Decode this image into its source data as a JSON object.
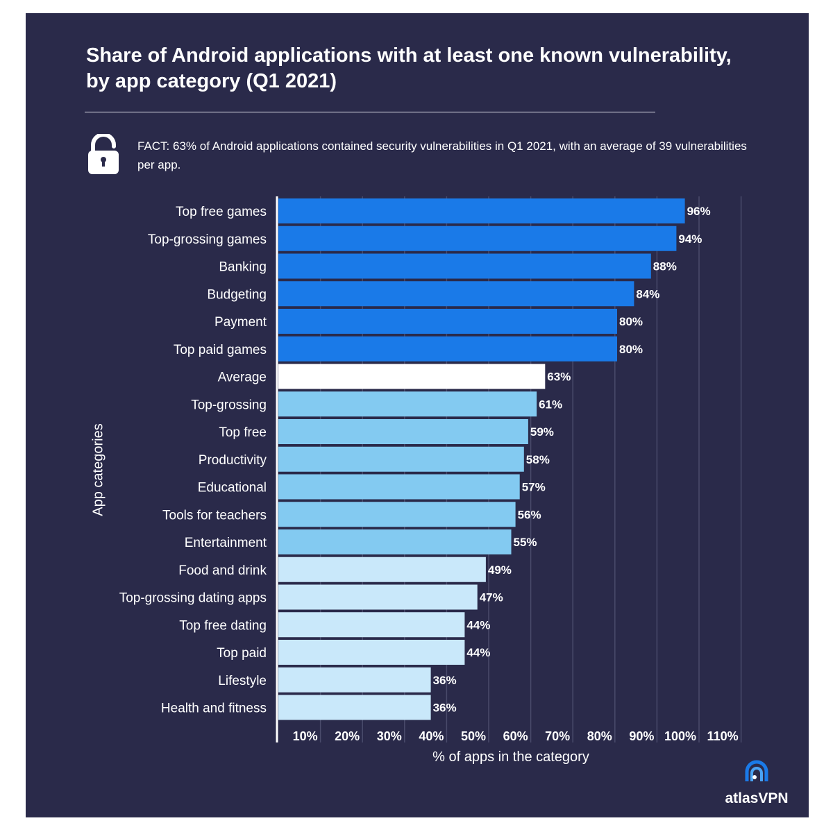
{
  "chart_data": {
    "type": "bar",
    "orientation": "horizontal",
    "title": "Share of Android applications with at least one known vulnerability, by app category  (Q1 2021)",
    "xlabel": "% of apps in the category",
    "ylabel": "App categories",
    "xlim": [
      0,
      115
    ],
    "xticks": [
      "10%",
      "20%",
      "30%",
      "40%",
      "50%",
      "60%",
      "70%",
      "80%",
      "90%",
      "100%",
      "110%"
    ],
    "grid": "vertical",
    "categories": [
      "Top free games",
      "Top-grossing games",
      "Banking",
      "Budgeting",
      "Payment",
      "Top paid games",
      "Average",
      "Top-grossing",
      "Top free",
      "Productivity",
      "Educational",
      "Tools for teachers",
      "Entertainment",
      "Food and drink",
      "Top-grossing dating apps",
      "Top free dating",
      "Top paid",
      "Lifestyle",
      "Health and fitness"
    ],
    "values": [
      96,
      94,
      88,
      84,
      80,
      80,
      63,
      61,
      59,
      58,
      57,
      56,
      55,
      49,
      47,
      44,
      44,
      36,
      36
    ],
    "labels": [
      "96%",
      "94%",
      "88%",
      "84%",
      "80%",
      "80%",
      "63%",
      "61%",
      "59%",
      "58%",
      "57%",
      "56%",
      "55%",
      "49%",
      "47%",
      "44%",
      "44%",
      "36%",
      "36%"
    ],
    "colors": {
      "high": "#1a7ae8",
      "average": "#ffffff",
      "mid": "#83caf1",
      "low": "#c9e8fa",
      "background": "#2a2a4a"
    }
  },
  "fact": "FACT: 63% of Android applications contained security vulnerabilities in Q1 2021, with an average of 39 vulnerabilities per app.",
  "fact_icon": "unlocked-padlock-icon",
  "brand": "atlasVPN"
}
